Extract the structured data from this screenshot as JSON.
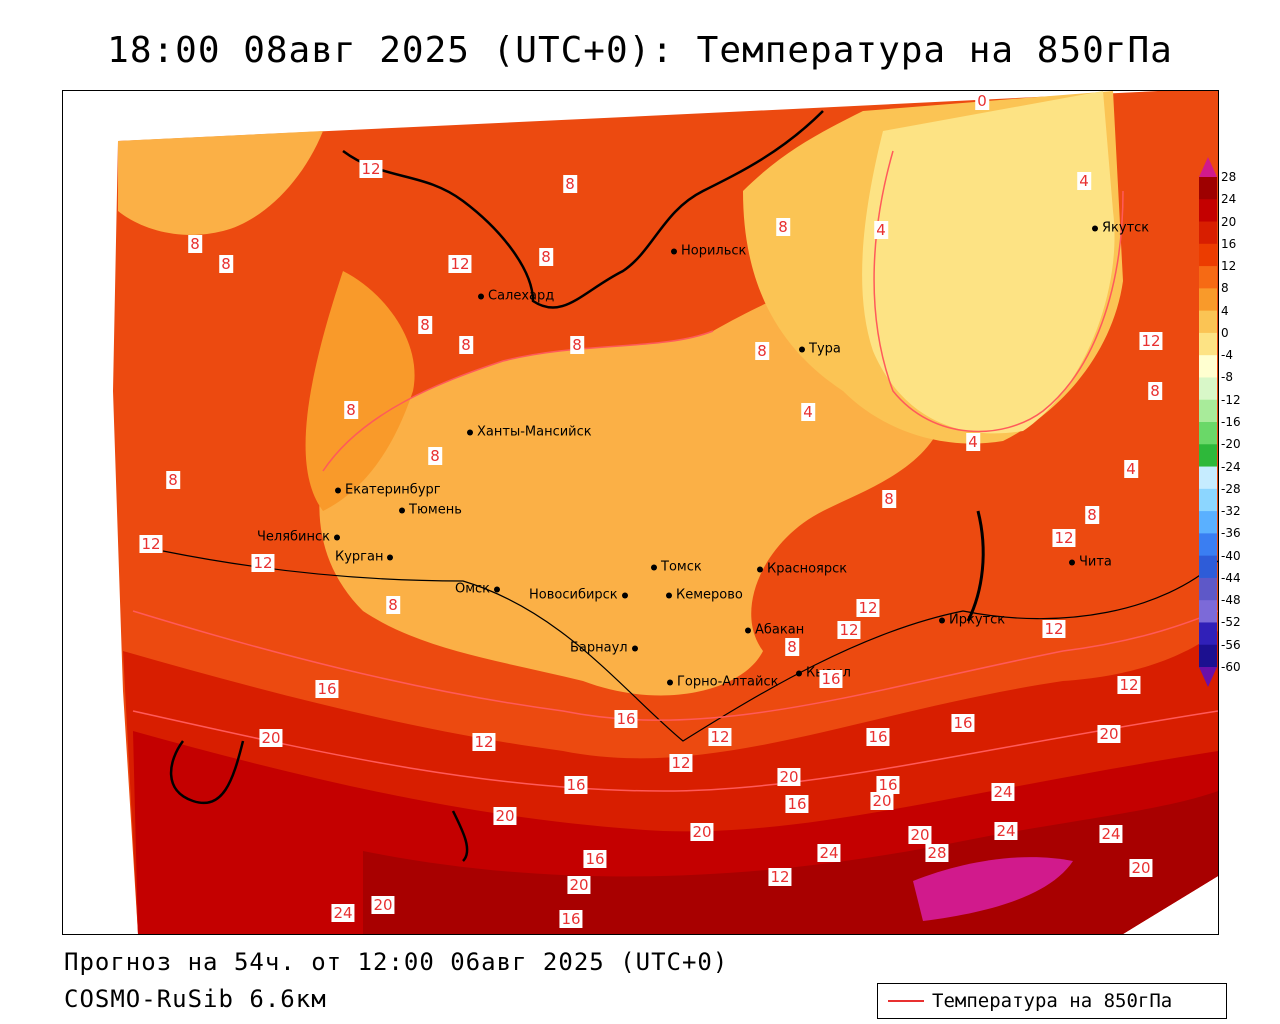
{
  "title": "18:00 08авг 2025 (UTC+0): Температура на 850гПа",
  "footer": {
    "forecast": "Прогноз на 54ч. от 12:00 06авг 2025 (UTC+0)",
    "model": "COSMO-RuSib 6.6км"
  },
  "legend": {
    "label": "Температура на 850гПа",
    "line_color": "#e83030"
  },
  "colorbar": {
    "ticks": [
      "28",
      "24",
      "20",
      "16",
      "12",
      "8",
      "4",
      "0",
      "-4",
      "-8",
      "-12",
      "-16",
      "-20",
      "-24",
      "-28",
      "-32",
      "-36",
      "-40",
      "-44",
      "-48",
      "-52",
      "-56",
      "-60"
    ],
    "colors": [
      "#d11a8c",
      "#9e0000",
      "#c40000",
      "#d81e00",
      "#ec3c00",
      "#f66a14",
      "#f99a2a",
      "#fbc454",
      "#fde384",
      "#ffffd0",
      "#d8f7c8",
      "#a8eb9a",
      "#6ad868",
      "#2eb83a",
      "#c6ecff",
      "#8cd6ff",
      "#5ab0ff",
      "#3a7ef2",
      "#2e5cd8",
      "#5e58c8",
      "#7c6ad8",
      "#3020b8",
      "#1c1090",
      "#6a10a8"
    ]
  },
  "cities": [
    {
      "name": "Норильск"
    },
    {
      "name": "Якутск"
    },
    {
      "name": "Салехард"
    },
    {
      "name": "Тура"
    },
    {
      "name": "Ханты-Мансийск"
    },
    {
      "name": "Екатеринбург"
    },
    {
      "name": "Тюмень"
    },
    {
      "name": "Челябинск"
    },
    {
      "name": "Курган"
    },
    {
      "name": "Омск"
    },
    {
      "name": "Томск"
    },
    {
      "name": "Новосибирск"
    },
    {
      "name": "Кемерово"
    },
    {
      "name": "Красноярск"
    },
    {
      "name": "Барнаул"
    },
    {
      "name": "Абакан"
    },
    {
      "name": "Кызыл"
    },
    {
      "name": "Горно-Алтайск"
    },
    {
      "name": "Иркутск"
    },
    {
      "name": "Чита"
    }
  ],
  "contour_labels": [
    "12",
    "8",
    "8",
    "8",
    "8",
    "12",
    "8",
    "8",
    "8",
    "8",
    "12",
    "12",
    "8",
    "16",
    "20",
    "12",
    "16",
    "20",
    "16",
    "20",
    "16",
    "24",
    "20",
    "16",
    "8",
    "8",
    "8",
    "4",
    "4",
    "8",
    "4",
    "4",
    "8",
    "8",
    "12",
    "12",
    "12",
    "12",
    "12",
    "16",
    "16",
    "16",
    "20",
    "16",
    "20",
    "16",
    "20",
    "24",
    "20",
    "24",
    "28",
    "24",
    "24",
    "20",
    "20",
    "12",
    "0",
    "4",
    "12",
    "12",
    "8",
    "4",
    "12",
    "8",
    "12",
    "16",
    "20",
    "8",
    "8",
    "8",
    "4"
  ]
}
